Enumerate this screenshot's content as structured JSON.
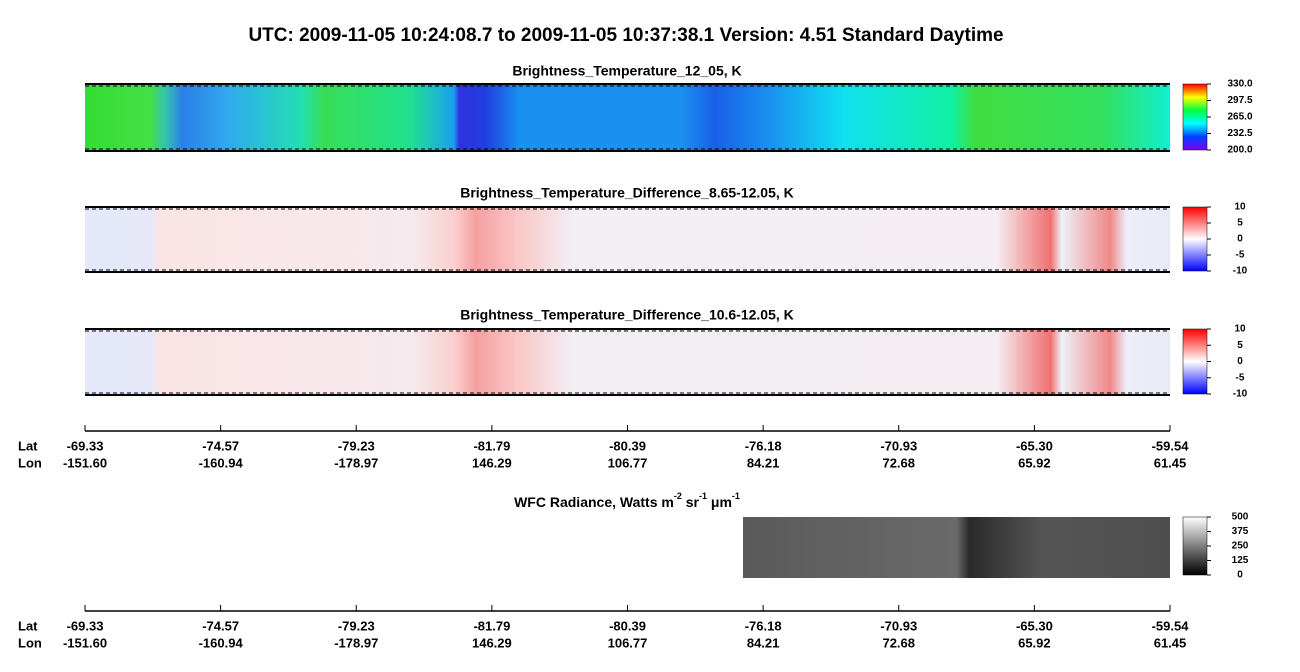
{
  "title": "UTC:  2009-11-05   10:24:08.7  to  2009-11-05   10:37:38.1    Version: 4.51  Standard Daytime",
  "panels": [
    {
      "title": "Brightness_Temperature_12_05, K",
      "colormap": "rainbow",
      "colorbar_ticks": [
        {
          "value": 330,
          "label": "330.0"
        },
        {
          "value": 297.5,
          "label": "297.5"
        },
        {
          "value": 265,
          "label": "265.0"
        },
        {
          "value": 232.5,
          "label": "232.5"
        },
        {
          "value": 200,
          "label": "200.0"
        }
      ]
    },
    {
      "title": "Brightness_Temperature_Difference_8.65-12.05, K",
      "colormap": "diverging",
      "colorbar_ticks": [
        10,
        5,
        0,
        -5,
        -10
      ]
    },
    {
      "title": "Brightness_Temperature_Difference_10.6-12.05, K",
      "colormap": "diverging",
      "colorbar_ticks": [
        10,
        5,
        0,
        -5,
        -10
      ]
    },
    {
      "title_parts": [
        "WFC Radiance, Watts m",
        "-2",
        " sr",
        "-1",
        " μm",
        "-1"
      ],
      "colormap": "gray",
      "colorbar_ticks": [
        500,
        375,
        250,
        125,
        0
      ]
    }
  ],
  "axes": [
    {
      "row_labels": [
        "Lat",
        "Lon"
      ],
      "lat": [
        "-69.33",
        "-74.57",
        "-79.23",
        "-81.79",
        "-80.39",
        "-76.18",
        "-70.93",
        "-65.30",
        "-59.54"
      ],
      "lon": [
        "-151.60",
        "-160.94",
        "-178.97",
        "146.29",
        "106.77",
        "84.21",
        "72.68",
        "65.92",
        "61.45"
      ]
    },
    {
      "row_labels": [
        "Lat",
        "Lon"
      ],
      "lat": [
        "-69.33",
        "-74.57",
        "-79.23",
        "-81.79",
        "-80.39",
        "-76.18",
        "-70.93",
        "-65.30",
        "-59.54"
      ],
      "lon": [
        "-151.60",
        "-160.94",
        "-178.97",
        "146.29",
        "106.77",
        "84.21",
        "72.68",
        "65.92",
        "61.45"
      ]
    }
  ]
}
